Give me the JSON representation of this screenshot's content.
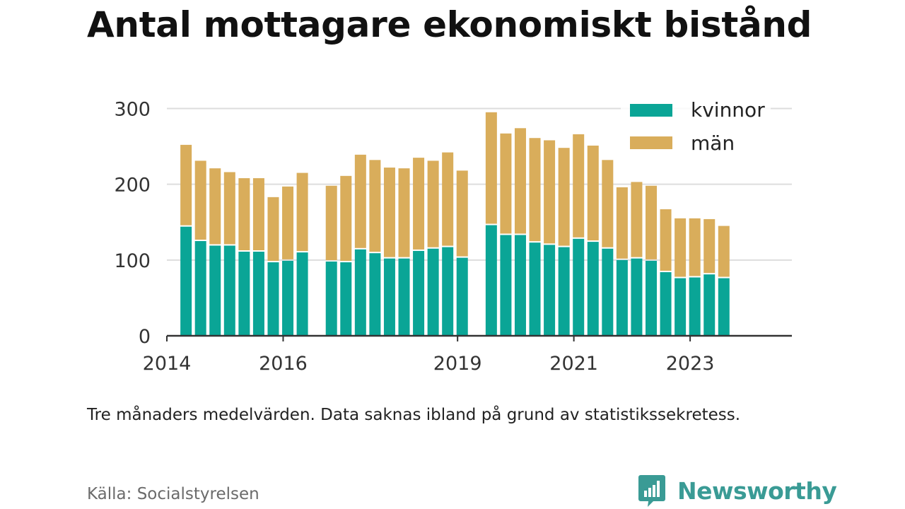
{
  "title": "Antal mottagare ekonomiskt bistånd",
  "note": "Tre månaders medelvärden. Data saknas ibland på grund av statistikssekretess.",
  "source": "Källa: Socialstyrelsen",
  "brand": {
    "name": "Newsworthy",
    "icon": "newsworthy-logo-icon",
    "color": "#3a9b95"
  },
  "colors": {
    "kvinnor": "#0aa596",
    "man": "#d9ad5b",
    "grid": "#dddddd",
    "axis": "#333333"
  },
  "chart_data": {
    "type": "bar",
    "stacked": true,
    "yticks": [
      0,
      100,
      200,
      300
    ],
    "ylim": [
      0,
      320
    ],
    "xticks": [
      "2014",
      "2016",
      "2019",
      "2021",
      "2023"
    ],
    "xlim": [
      2014.0,
      2024.75
    ],
    "grid": true,
    "legend_position": "top-right",
    "x": [
      2014.33,
      2014.58,
      2014.83,
      2015.08,
      2015.33,
      2015.58,
      2015.83,
      2016.08,
      2016.33,
      2016.83,
      2017.08,
      2017.33,
      2017.58,
      2017.83,
      2018.08,
      2018.33,
      2018.58,
      2018.83,
      2019.08,
      2019.58,
      2019.83,
      2020.08,
      2020.33,
      2020.58,
      2020.83,
      2021.08,
      2021.33,
      2021.58,
      2021.83,
      2022.08,
      2022.33,
      2022.58,
      2022.83,
      2023.08,
      2023.33,
      2023.58
    ],
    "series": [
      {
        "name": "kvinnor",
        "color": "#0aa596",
        "values": [
          144,
          125,
          119,
          119,
          111,
          111,
          97,
          99,
          110,
          98,
          97,
          114,
          109,
          102,
          102,
          112,
          115,
          117,
          103,
          146,
          133,
          133,
          123,
          120,
          117,
          128,
          124,
          115,
          100,
          102,
          99,
          84,
          76,
          77,
          81,
          76
        ]
      },
      {
        "name": "män",
        "color": "#d9ad5b",
        "values": [
          108,
          106,
          102,
          97,
          97,
          97,
          86,
          98,
          105,
          100,
          114,
          125,
          123,
          120,
          119,
          123,
          116,
          125,
          115,
          149,
          134,
          141,
          138,
          138,
          131,
          138,
          127,
          117,
          96,
          101,
          99,
          83,
          79,
          78,
          73,
          69
        ]
      }
    ]
  }
}
